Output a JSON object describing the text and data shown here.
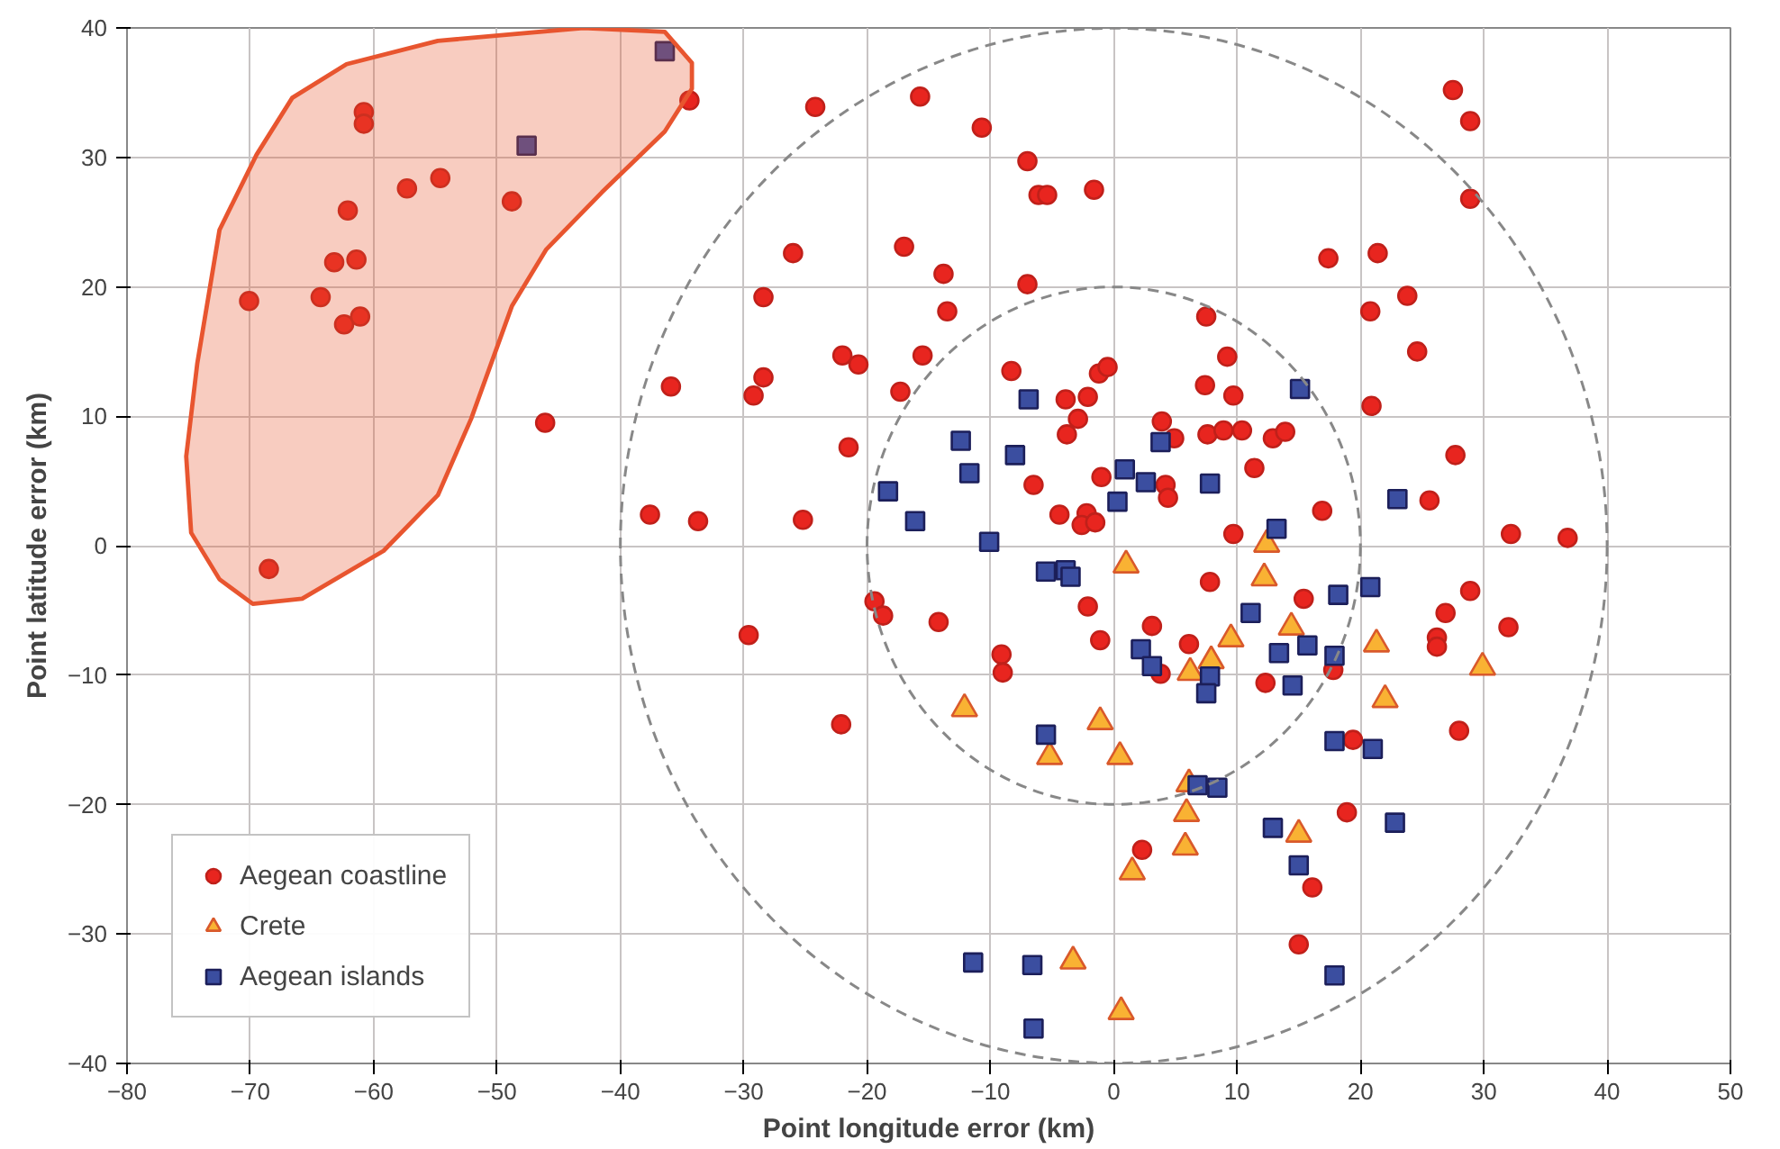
{
  "chart_data": {
    "type": "scatter",
    "xlabel": "Point longitude error (km)",
    "ylabel": "Point latitude error (km)",
    "xlim": [
      -80,
      50
    ],
    "xticks": [
      -80,
      -70,
      -60,
      -50,
      -40,
      -30,
      -20,
      -10,
      0,
      10,
      20,
      30,
      40,
      50
    ],
    "ylim": [
      -40,
      40
    ],
    "yticks": [
      -40,
      -30,
      -20,
      -10,
      0,
      10,
      20,
      30,
      40
    ],
    "grid": true,
    "legend": "bottom left",
    "series": [
      {
        "name": "Aegean coastline",
        "marker": "circle",
        "color": "#e8251f",
        "x": [
          -34.4,
          -60.8,
          -60.8,
          -57.3,
          -54.6,
          -48.8,
          -62.1,
          -63.2,
          -61.4,
          -70.1,
          -64.3,
          -62.4,
          -61.1,
          -46.1,
          -68.5,
          -35.9,
          -37.6,
          -33.7,
          -24.2,
          -15.7,
          -10.7,
          -7.0,
          -6.1,
          -5.4,
          -1.6,
          -26.0,
          -17.0,
          -13.8,
          -7.0,
          -28.4,
          -13.5,
          -22.0,
          -20.7,
          -15.5,
          -28.4,
          -29.2,
          -17.3,
          -8.3,
          -1.2,
          -0.5,
          -3.9,
          -2.1,
          -2.9,
          -3.8,
          -21.5,
          -6.5,
          -1.0,
          -4.4,
          -2.2,
          -2.6,
          -1.5,
          -25.2,
          3.9,
          4.2,
          4.4,
          27.5,
          28.9,
          28.9,
          17.4,
          21.4,
          23.8,
          20.8,
          24.6,
          7.5,
          9.2,
          7.4,
          9.7,
          20.9,
          4.9,
          7.6,
          8.9,
          10.4,
          12.9,
          13.9,
          11.4,
          27.7,
          16.9,
          25.6,
          9.7,
          32.2,
          36.8,
          -19.4,
          -18.7,
          -14.2,
          -29.6,
          -2.1,
          3.1,
          -1.1,
          -9.1,
          -9.0,
          3.8,
          -22.1,
          2.3,
          7.8,
          15.4,
          28.9,
          26.9,
          32.0,
          26.2,
          26.2,
          6.1,
          12.3,
          17.8,
          28.0,
          19.4,
          18.9,
          16.1,
          15.0
        ],
        "values": [
          34.4,
          33.5,
          32.6,
          27.6,
          28.4,
          26.6,
          25.9,
          21.9,
          22.1,
          18.9,
          19.2,
          17.1,
          17.7,
          9.5,
          -1.8,
          12.3,
          2.4,
          1.9,
          33.9,
          34.7,
          32.3,
          29.7,
          27.1,
          27.1,
          27.5,
          22.6,
          23.1,
          21.0,
          20.2,
          19.2,
          18.1,
          14.7,
          14.0,
          14.7,
          13.0,
          11.6,
          11.9,
          13.5,
          13.3,
          13.8,
          11.3,
          11.5,
          9.8,
          8.6,
          7.6,
          4.7,
          5.3,
          2.4,
          2.5,
          1.6,
          1.8,
          2.0,
          9.6,
          4.7,
          3.7,
          35.2,
          32.8,
          26.8,
          22.2,
          22.6,
          19.3,
          18.1,
          15.0,
          17.7,
          14.6,
          12.4,
          11.6,
          10.8,
          8.3,
          8.6,
          8.9,
          8.9,
          8.3,
          8.8,
          6.0,
          7.0,
          2.7,
          3.5,
          0.9,
          0.9,
          0.6,
          -4.3,
          -5.4,
          -5.9,
          -6.9,
          -4.7,
          -6.2,
          -7.3,
          -8.4,
          -9.8,
          -9.9,
          -13.8,
          -23.5,
          -2.8,
          -4.1,
          -3.5,
          -5.2,
          -6.3,
          -7.1,
          -7.8,
          -7.6,
          -10.6,
          -9.6,
          -14.3,
          -15.0,
          -20.6,
          -26.4,
          -30.8
        ]
      },
      {
        "name": "Crete",
        "marker": "triangle",
        "color": "#f9b233",
        "x": [
          12.4,
          1.0,
          -12.1,
          -1.1,
          -5.2,
          0.5,
          1.5,
          -3.3,
          0.6,
          12.2,
          9.5,
          14.4,
          21.3,
          6.2,
          7.9,
          29.9,
          22.0,
          6.1,
          5.9,
          5.8,
          15.0
        ],
        "values": [
          0.1,
          -1.5,
          -12.6,
          -13.6,
          -16.3,
          -16.3,
          -25.2,
          -32.1,
          -36.0,
          -2.5,
          -7.2,
          -6.3,
          -7.6,
          -9.8,
          -8.9,
          -9.4,
          -11.9,
          -18.4,
          -20.7,
          -23.3,
          -22.3
        ]
      },
      {
        "name": "Aegean islands",
        "marker": "square",
        "color": "#3b4ea0",
        "x": [
          -36.4,
          -47.6,
          -6.9,
          -12.4,
          -8.0,
          -11.7,
          -18.3,
          -16.1,
          -10.1,
          0.9,
          2.6,
          0.3,
          3.8,
          15.1,
          7.8,
          23.0,
          13.2,
          -5.5,
          -3.9,
          -3.5,
          2.2,
          3.1,
          -5.5,
          -11.4,
          -6.6,
          -6.5,
          18.2,
          20.8,
          11.1,
          13.4,
          15.7,
          17.9,
          14.5,
          7.8,
          7.5,
          17.9,
          21.0,
          6.8,
          8.4,
          12.9,
          22.8,
          15.0,
          17.9
        ],
        "values": [
          38.2,
          30.9,
          11.3,
          8.1,
          7.0,
          5.6,
          4.2,
          1.9,
          0.3,
          5.9,
          4.9,
          3.4,
          8.0,
          12.1,
          4.8,
          3.6,
          1.3,
          -2.0,
          -1.9,
          -2.4,
          -8.0,
          -9.3,
          -14.6,
          -32.2,
          -32.4,
          -37.3,
          -3.8,
          -3.2,
          -5.2,
          -8.3,
          -7.7,
          -8.5,
          -10.8,
          -10.1,
          -11.4,
          -15.1,
          -15.7,
          -18.5,
          -18.7,
          -21.8,
          -21.4,
          -24.7,
          -33.2
        ]
      },
      {
        "type": "area",
        "color": "#e8552f",
        "x": [
          -34.2,
          -36.4,
          -43.0,
          -54.8,
          -62.2,
          -66.6,
          -69.5,
          -72.5,
          -74.3,
          -75.2,
          -74.8,
          -72.5,
          -69.8,
          -65.8,
          -59.2,
          -54.8,
          -52.1,
          -48.8,
          -46.0,
          -41.5,
          -36.4,
          -34.2,
          -34.2
        ],
        "values": [
          37.3,
          39.7,
          40.0,
          39.0,
          37.2,
          34.6,
          30.2,
          24.4,
          14.1,
          6.9,
          1.0,
          -2.6,
          -4.5,
          -4.1,
          -0.4,
          3.9,
          9.8,
          18.5,
          22.9,
          27.3,
          32.0,
          35.3,
          37.3
        ]
      }
    ]
  }
}
